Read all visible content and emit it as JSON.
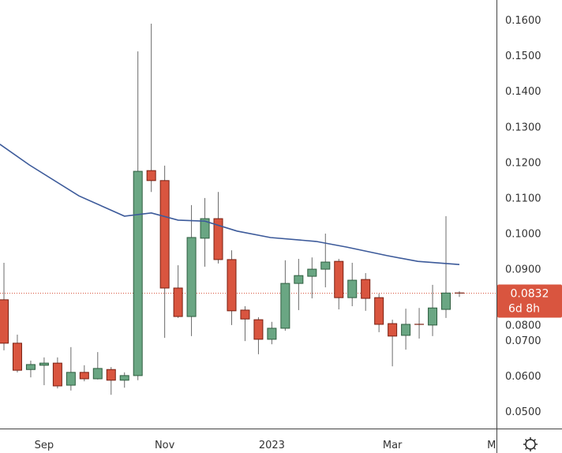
{
  "chart_data": {
    "type": "candlestick",
    "title": "",
    "y_axis": {
      "ticks": [
        "0.1600",
        "0.1500",
        "0.1400",
        "0.1300",
        "0.1200",
        "0.1100",
        "0.1000",
        "0.0900",
        "0.0800",
        "0.0700",
        "0.0600",
        "0.0500"
      ],
      "tick_values": [
        0.16,
        0.15,
        0.14,
        0.13,
        0.12,
        0.11,
        0.1,
        0.09,
        0.08,
        0.07,
        0.06,
        0.05
      ],
      "range": [
        0.044,
        0.1655
      ],
      "position": "right"
    },
    "x_axis": {
      "ticks": [
        {
          "label": "Sep",
          "index": 3
        },
        {
          "label": "Nov",
          "index": 12
        },
        {
          "label": "2023",
          "index": 20
        },
        {
          "label": "Mar",
          "index": 29
        },
        {
          "label": "M",
          "index": 36.4
        }
      ]
    },
    "candles": [
      {
        "o": 0.0813,
        "h": 0.0917,
        "l": 0.0671,
        "c": 0.0691
      },
      {
        "o": 0.0691,
        "h": 0.0715,
        "l": 0.0609,
        "c": 0.0615
      },
      {
        "o": 0.0617,
        "h": 0.0642,
        "l": 0.0595,
        "c": 0.0631
      },
      {
        "o": 0.0629,
        "h": 0.0651,
        "l": 0.0573,
        "c": 0.0635
      },
      {
        "o": 0.0635,
        "h": 0.0651,
        "l": 0.0564,
        "c": 0.0571
      },
      {
        "o": 0.0573,
        "h": 0.068,
        "l": 0.0558,
        "c": 0.0609
      },
      {
        "o": 0.0609,
        "h": 0.0629,
        "l": 0.0584,
        "c": 0.0591
      },
      {
        "o": 0.0591,
        "h": 0.0666,
        "l": 0.0589,
        "c": 0.062
      },
      {
        "o": 0.0617,
        "h": 0.0624,
        "l": 0.0546,
        "c": 0.0587
      },
      {
        "o": 0.0587,
        "h": 0.0609,
        "l": 0.0566,
        "c": 0.06
      },
      {
        "o": 0.06,
        "h": 0.1511,
        "l": 0.0587,
        "c": 0.1174
      },
      {
        "o": 0.1176,
        "h": 0.1589,
        "l": 0.1116,
        "c": 0.1148
      },
      {
        "o": 0.1148,
        "h": 0.119,
        "l": 0.0706,
        "c": 0.0846
      },
      {
        "o": 0.0846,
        "h": 0.091,
        "l": 0.0762,
        "c": 0.0766
      },
      {
        "o": 0.0766,
        "h": 0.1079,
        "l": 0.0711,
        "c": 0.0988
      },
      {
        "o": 0.0986,
        "h": 0.1099,
        "l": 0.0906,
        "c": 0.1041
      },
      {
        "o": 0.1041,
        "h": 0.1116,
        "l": 0.0915,
        "c": 0.0926
      },
      {
        "o": 0.0926,
        "h": 0.0952,
        "l": 0.0742,
        "c": 0.0782
      },
      {
        "o": 0.0784,
        "h": 0.0795,
        "l": 0.0697,
        "c": 0.0759
      },
      {
        "o": 0.0757,
        "h": 0.0764,
        "l": 0.066,
        "c": 0.0702
      },
      {
        "o": 0.0702,
        "h": 0.0751,
        "l": 0.0688,
        "c": 0.0733
      },
      {
        "o": 0.0733,
        "h": 0.0924,
        "l": 0.0726,
        "c": 0.0859
      },
      {
        "o": 0.0859,
        "h": 0.0928,
        "l": 0.0784,
        "c": 0.0881
      },
      {
        "o": 0.0879,
        "h": 0.0932,
        "l": 0.0817,
        "c": 0.0899
      },
      {
        "o": 0.0899,
        "h": 0.0999,
        "l": 0.0848,
        "c": 0.0919
      },
      {
        "o": 0.0921,
        "h": 0.0928,
        "l": 0.0786,
        "c": 0.0819
      },
      {
        "o": 0.0819,
        "h": 0.0917,
        "l": 0.0795,
        "c": 0.0868
      },
      {
        "o": 0.087,
        "h": 0.0888,
        "l": 0.0782,
        "c": 0.0817
      },
      {
        "o": 0.0819,
        "h": 0.083,
        "l": 0.0722,
        "c": 0.0744
      },
      {
        "o": 0.0746,
        "h": 0.0757,
        "l": 0.0626,
        "c": 0.0711
      },
      {
        "o": 0.0713,
        "h": 0.0788,
        "l": 0.0673,
        "c": 0.0744
      },
      {
        "o": 0.0744,
        "h": 0.079,
        "l": 0.0704,
        "c": 0.0744
      },
      {
        "o": 0.0742,
        "h": 0.0855,
        "l": 0.0711,
        "c": 0.079
      },
      {
        "o": 0.0786,
        "h": 0.1048,
        "l": 0.0762,
        "c": 0.0832
      },
      {
        "o": 0.0832,
        "h": 0.0837,
        "l": 0.0821,
        "c": 0.0832
      }
    ],
    "moving_average": [
      [
        -0.3,
        0.125
      ],
      [
        1.9,
        0.1192
      ],
      [
        5.6,
        0.1105
      ],
      [
        9,
        0.1048
      ],
      [
        11,
        0.1057
      ],
      [
        13,
        0.1037
      ],
      [
        15,
        0.1034
      ],
      [
        17.4,
        0.1006
      ],
      [
        19.9,
        0.0988
      ],
      [
        23.3,
        0.0977
      ],
      [
        25.6,
        0.0961
      ],
      [
        28.6,
        0.0937
      ],
      [
        30.9,
        0.0921
      ],
      [
        34,
        0.0912
      ]
    ],
    "last_price": {
      "value": 0.0832,
      "label": "0.0832",
      "countdown": "6d 8h"
    },
    "grid": false
  },
  "colors": {
    "up_body": "#6aa683",
    "up_border": "#2f5e40",
    "down_body": "#d9553f",
    "down_border": "#7a2012",
    "wick": "#6b6b6b",
    "ma_line": "#3c5a9a",
    "price_label": "#d9553f",
    "axis": "#444444"
  },
  "settings_icon": "sun-gear-icon"
}
